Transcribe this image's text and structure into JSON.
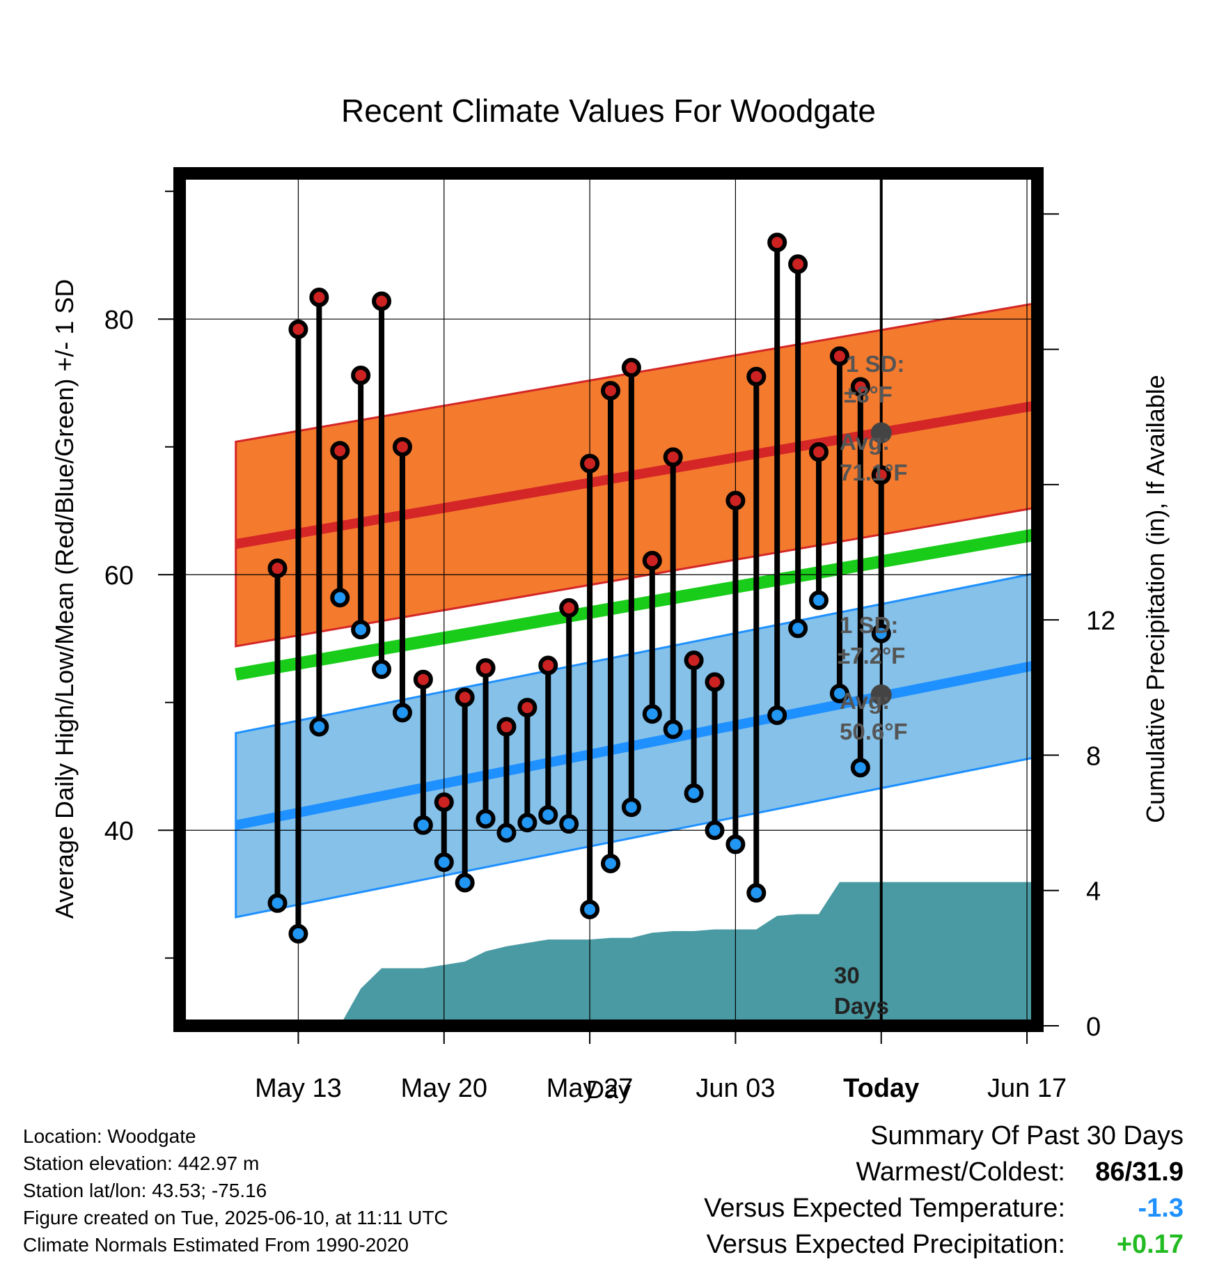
{
  "chart_data": {
    "type": "line",
    "title": "Recent Climate Values For Woodgate",
    "xlabel": "Day",
    "ylabel": "Average Daily High/Low/Mean (Red/Blue/Green) +/- 1 SD",
    "y2label": "Cumulative Precipitation (in), If Available",
    "x_ticks": [
      "May 13",
      "May 20",
      "May 27",
      "Jun 03",
      "Today",
      "Jun 17"
    ],
    "y_ticks": [
      40,
      60,
      80
    ],
    "y2_ticks": [
      0,
      4,
      8,
      12
    ],
    "ylim": [
      24.7,
      91.4
    ],
    "y2lim": [
      0,
      25.2
    ],
    "xlim": [
      -3.7,
      37.5
    ],
    "today_index": 30,
    "grid": true,
    "daily": {
      "day_index": [
        1,
        2,
        3,
        4,
        5,
        6,
        7,
        8,
        9,
        10,
        11,
        12,
        13,
        14,
        15,
        16,
        17,
        18,
        19,
        20,
        21,
        22,
        23,
        24,
        25,
        26,
        27,
        28,
        29,
        30
      ],
      "highs": [
        60.5,
        79.2,
        81.7,
        69.7,
        75.6,
        81.4,
        70.0,
        51.8,
        42.2,
        50.4,
        52.7,
        48.1,
        49.6,
        52.9,
        57.4,
        68.7,
        74.4,
        76.2,
        61.1,
        69.2,
        53.3,
        51.6,
        65.8,
        75.5,
        86.0,
        84.3,
        69.6,
        77.1,
        74.7,
        67.8
      ],
      "lows": [
        34.3,
        31.9,
        48.1,
        58.2,
        55.7,
        52.6,
        49.2,
        40.4,
        37.5,
        35.9,
        40.9,
        39.8,
        40.6,
        41.2,
        40.5,
        33.8,
        37.4,
        41.8,
        49.1,
        47.9,
        42.9,
        40.0,
        38.9,
        35.1,
        49.0,
        55.8,
        58.0,
        50.7,
        44.9,
        55.4
      ]
    },
    "normals": {
      "day_index_range": [
        -1,
        38
      ],
      "high_avg_start": 62.4,
      "high_avg_end": 73.4,
      "high_sd": 8.0,
      "low_avg_start": 40.4,
      "low_avg_end": 53.1,
      "low_sd": 7.2,
      "mean_avg_start": 52.2,
      "mean_avg_end": 63.3
    },
    "precip": {
      "day_index": [
        -1,
        4,
        5,
        6,
        7,
        8,
        9,
        10,
        11,
        12,
        13,
        14,
        15,
        16,
        17,
        18,
        19,
        20,
        21,
        22,
        23,
        24,
        25,
        26,
        27,
        28,
        29,
        30,
        38
      ],
      "cumulative": [
        0,
        0,
        1.1,
        1.7,
        1.7,
        1.7,
        1.8,
        1.9,
        2.2,
        2.35,
        2.45,
        2.55,
        2.55,
        2.55,
        2.6,
        2.6,
        2.75,
        2.8,
        2.8,
        2.85,
        2.85,
        2.85,
        3.25,
        3.3,
        3.3,
        4.25,
        4.25,
        4.25,
        4.25
      ]
    },
    "colors": {
      "high_band": "#f47a2e",
      "high_line": "#d42626",
      "low_band": "#85c1e9",
      "low_line": "#1e90ff",
      "mean_line": "#19cc19",
      "precip": "#4a9aa3",
      "high_marker": "#cc2222",
      "low_marker": "#2196f3",
      "avg_marker": "#444444"
    },
    "annotations": {
      "high_sd_title": "1 SD:",
      "high_sd_value": "±8°F",
      "high_avg_title": "Avg:",
      "high_avg_value": "71.1°F",
      "low_sd_title": "1 SD:",
      "low_sd_value": "±7.2°F",
      "low_avg_title": "Avg:",
      "low_avg_value": "50.6°F",
      "high_avg_point": 71.1,
      "low_avg_point": 50.6,
      "period_number": "30",
      "period_unit": "Days"
    }
  },
  "info": {
    "location": "Location: Woodgate",
    "elevation": "Station elevation: 442.97 m",
    "latlon": "Station lat/lon: 43.53; -75.16",
    "created": "Figure created on Tue, 2025-06-10, at 11:11 UTC",
    "normals": "Climate Normals Estimated From 1990-2020"
  },
  "summary": {
    "title": "Summary Of Past 30 Days",
    "warmest_label": "Warmest/Coldest:",
    "warmest_value": "86/31.9",
    "temp_label": "Versus Expected Temperature:",
    "temp_value": "-1.3",
    "temp_color": "#1e90ff",
    "precip_label": "Versus Expected Precipitation:",
    "precip_value": "+0.17",
    "precip_color": "#22bb22"
  }
}
